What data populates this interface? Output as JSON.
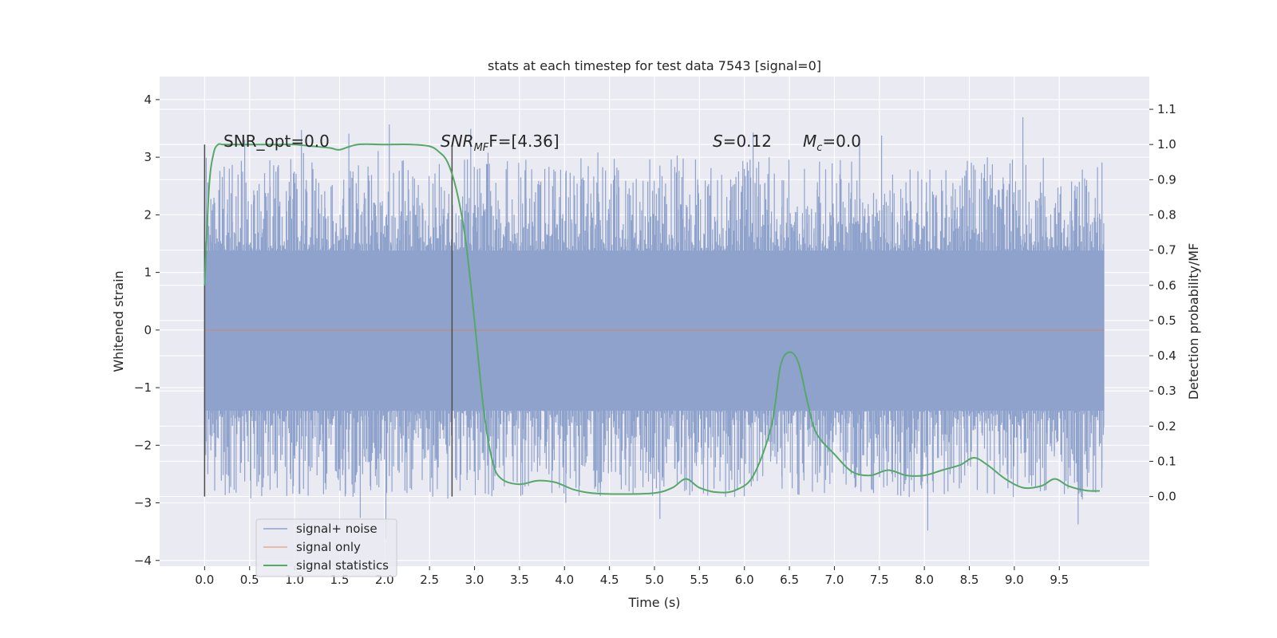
{
  "chart_data": {
    "type": "line",
    "title": "stats at each timestep for test data 7543 [signal=0]",
    "xlabel": "Time (s)",
    "ylabel": "Whitened strain",
    "y2label": "Detection probability/MF",
    "xlim": [
      -0.5,
      10.5
    ],
    "ylim": [
      -4.1,
      4.4
    ],
    "y2lim": [
      -0.198,
      1.193
    ],
    "x_ticks": [
      "0.0",
      "0.5",
      "1.0",
      "1.5",
      "2.0",
      "2.5",
      "3.0",
      "3.5",
      "4.0",
      "4.5",
      "5.0",
      "5.5",
      "6.0",
      "6.5",
      "7.0",
      "7.5",
      "8.0",
      "8.5",
      "9.0",
      "9.5"
    ],
    "y_ticks": [
      "−4",
      "−3",
      "−2",
      "−1",
      "0",
      "1",
      "2",
      "3",
      "4"
    ],
    "y2_ticks": [
      "0.0",
      "0.1",
      "0.2",
      "0.3",
      "0.4",
      "0.5",
      "0.6",
      "0.7",
      "0.8",
      "0.9",
      "1.0",
      "1.1"
    ],
    "grid": true,
    "legend_position": "lower-left",
    "series": [
      {
        "name": "signal+ noise",
        "axis": "left",
        "color": "#8fa2cc",
        "description_of_values": "whitened strain noise spanning 0.0–10.0 s, mostly within about ±2.7 with spikes up to about 4.0 and down to about −3.7",
        "x_range": [
          0.0,
          10.0
        ],
        "extremes": {
          "max": 4.05,
          "min": -3.7
        }
      },
      {
        "name": "signal only",
        "axis": "left",
        "color": "#dd8452",
        "x": [
          0.0,
          10.0
        ],
        "y": [
          0.0,
          0.0
        ]
      },
      {
        "name": "signal statistics",
        "axis": "right",
        "color": "#55a868",
        "x": [
          0.0,
          0.05,
          0.1,
          0.15,
          0.2,
          0.3,
          0.5,
          0.8,
          1.0,
          1.2,
          1.4,
          1.5,
          1.7,
          2.0,
          2.3,
          2.5,
          2.6,
          2.7,
          2.8,
          2.9,
          3.0,
          3.1,
          3.2,
          3.3,
          3.5,
          3.7,
          3.9,
          4.1,
          4.3,
          4.6,
          5.0,
          5.2,
          5.35,
          5.5,
          5.7,
          5.9,
          6.1,
          6.3,
          6.4,
          6.5,
          6.6,
          6.7,
          6.8,
          7.0,
          7.2,
          7.4,
          7.6,
          7.8,
          8.0,
          8.2,
          8.4,
          8.55,
          8.7,
          8.9,
          9.1,
          9.3,
          9.45,
          9.6,
          9.8,
          9.95
        ],
        "y": [
          0.6,
          0.88,
          0.975,
          1.0,
          1.0,
          1.0,
          1.0,
          1.0,
          1.0,
          0.995,
          0.99,
          0.985,
          1.0,
          1.0,
          1.0,
          0.995,
          0.98,
          0.95,
          0.87,
          0.73,
          0.5,
          0.25,
          0.1,
          0.05,
          0.035,
          0.045,
          0.04,
          0.02,
          0.01,
          0.007,
          0.01,
          0.025,
          0.05,
          0.025,
          0.012,
          0.018,
          0.06,
          0.2,
          0.37,
          0.41,
          0.38,
          0.27,
          0.18,
          0.12,
          0.07,
          0.06,
          0.075,
          0.06,
          0.06,
          0.075,
          0.09,
          0.11,
          0.09,
          0.05,
          0.025,
          0.03,
          0.05,
          0.03,
          0.017,
          0.016
        ]
      }
    ],
    "vertical_markers": [
      {
        "x": 0.0,
        "color": "#4d4d4d"
      },
      {
        "x": 2.75,
        "color": "#4d4d4d"
      }
    ],
    "annotations": [
      {
        "label": "SNR_opt=0.0"
      },
      {
        "label": "SNR",
        "subscript": "MF",
        "suffix": "F=[4.36]"
      },
      {
        "label": "S",
        "suffix": "=0.12"
      },
      {
        "label": "M",
        "subscript": "c",
        "suffix": "=0.0"
      }
    ]
  },
  "colors": {
    "plot_background": "#eaeaf2",
    "grid": "#ffffff",
    "text": "#262626"
  }
}
